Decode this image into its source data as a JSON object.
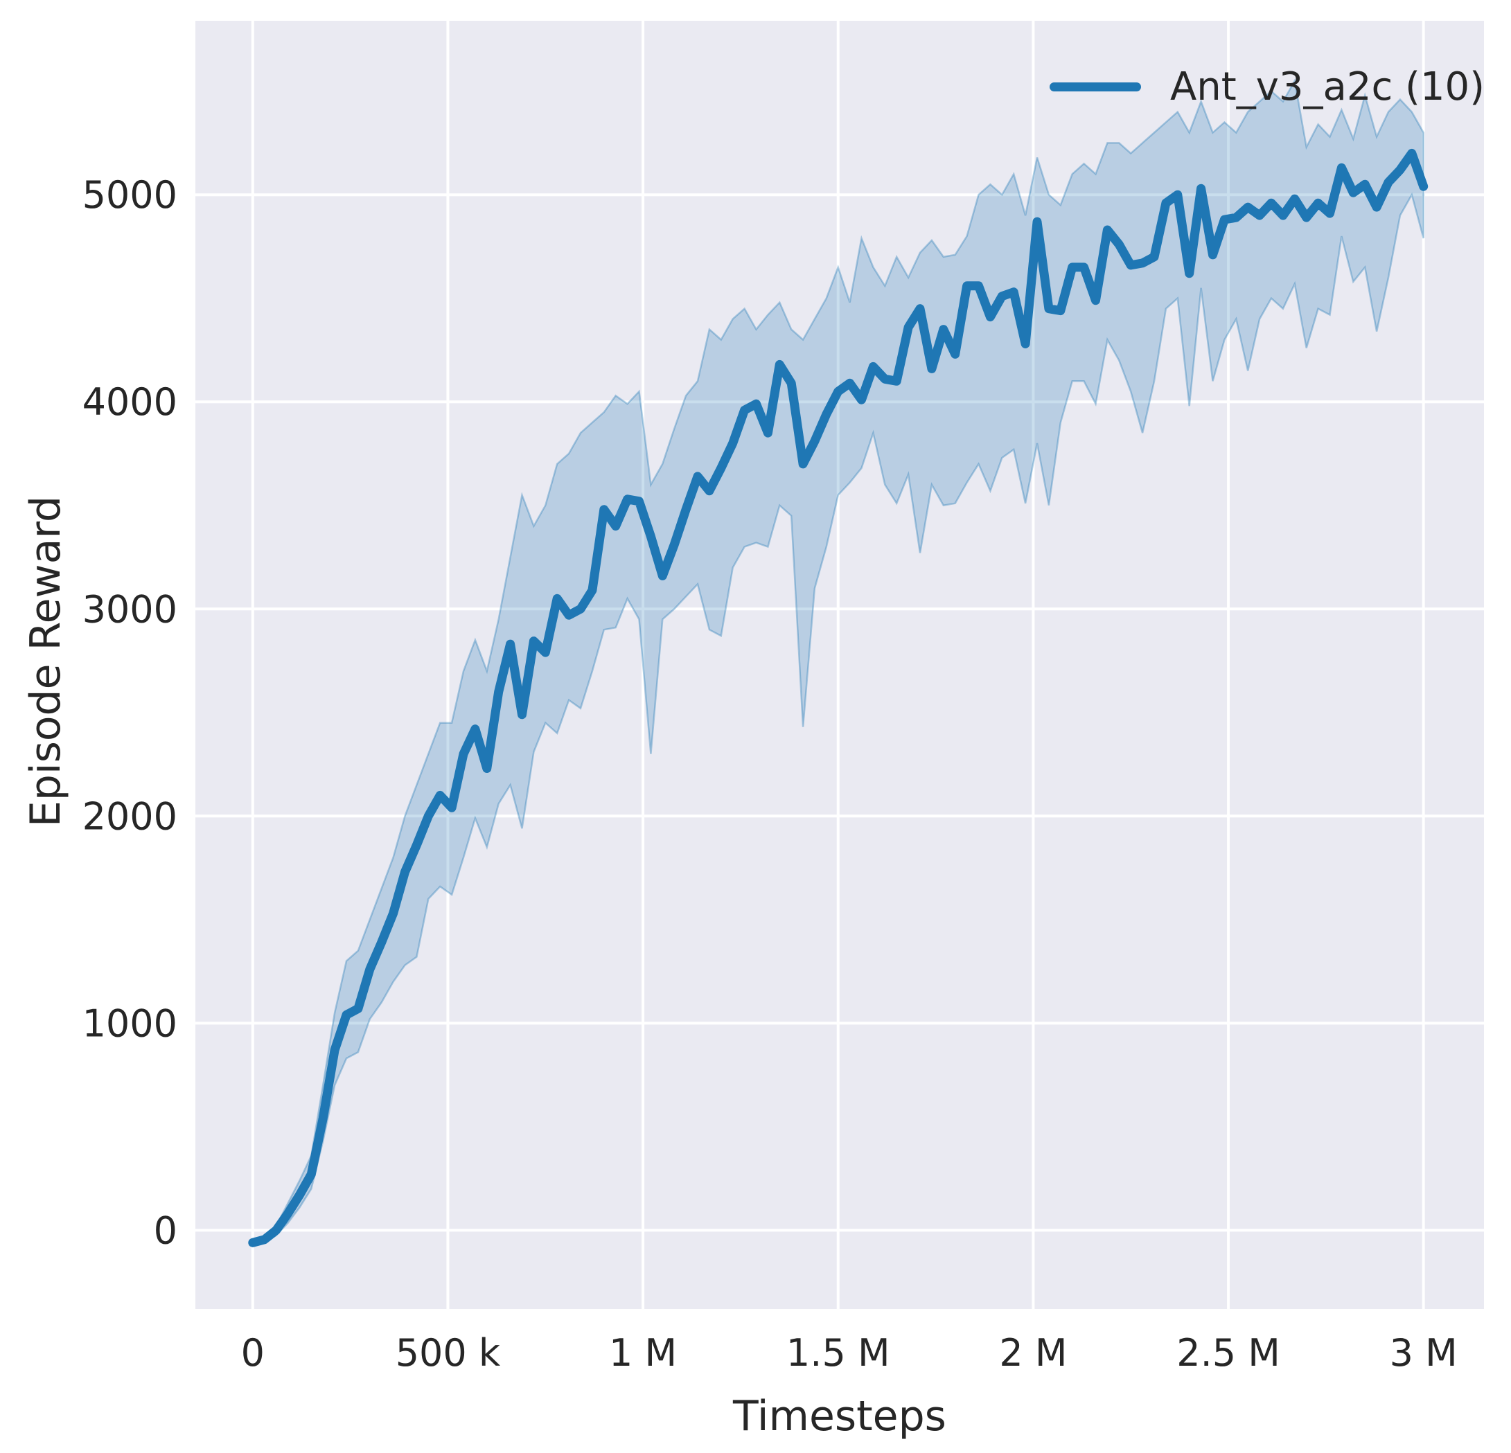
{
  "figure": {
    "background": "#ffffff",
    "axes_background": "#eaeaf2",
    "grid_color": "#ffffff",
    "text_color": "#262626",
    "accent_color": "#1f77b4"
  },
  "legend": {
    "label": "Ant_v3_a2c (10)"
  },
  "axes": {
    "xlabel": "Timesteps",
    "ylabel": "Episode Reward"
  },
  "chart_data": {
    "type": "line",
    "title": "",
    "xlabel": "Timesteps",
    "ylabel": "Episode Reward",
    "grid": true,
    "legend_position": "upper right",
    "xlim": [
      -147000,
      3155000
    ],
    "ylim": [
      -380,
      5840
    ],
    "x_ticks": [
      {
        "value": 0,
        "label": "0"
      },
      {
        "value": 500000,
        "label": "500 k"
      },
      {
        "value": 1000000,
        "label": "1 M"
      },
      {
        "value": 1500000,
        "label": "1.5 M"
      },
      {
        "value": 2000000,
        "label": "2 M"
      },
      {
        "value": 2500000,
        "label": "2.5 M"
      },
      {
        "value": 3000000,
        "label": "3 M"
      }
    ],
    "y_ticks": [
      {
        "value": 0,
        "label": "0"
      },
      {
        "value": 1000,
        "label": "1000"
      },
      {
        "value": 2000,
        "label": "2000"
      },
      {
        "value": 3000,
        "label": "3000"
      },
      {
        "value": 4000,
        "label": "4000"
      },
      {
        "value": 5000,
        "label": "5000"
      }
    ],
    "series": [
      {
        "name": "Ant_v3_a2c (10)",
        "color": "#1f77b4",
        "band_fill_alpha": 0.24,
        "x": [
          0,
          30000,
          60000,
          90000,
          120000,
          150000,
          180000,
          210000,
          240000,
          270000,
          300000,
          330000,
          360000,
          390000,
          420000,
          450000,
          480000,
          510000,
          540000,
          570000,
          600000,
          630000,
          660000,
          690000,
          720000,
          750000,
          780000,
          810000,
          840000,
          870000,
          900000,
          930000,
          960000,
          990000,
          1020000,
          1050000,
          1080000,
          1110000,
          1140000,
          1170000,
          1200000,
          1230000,
          1260000,
          1290000,
          1320000,
          1350000,
          1380000,
          1410000,
          1440000,
          1470000,
          1500000,
          1530000,
          1560000,
          1590000,
          1620000,
          1650000,
          1680000,
          1710000,
          1740000,
          1770000,
          1800000,
          1830000,
          1860000,
          1890000,
          1920000,
          1950000,
          1980000,
          2010000,
          2040000,
          2070000,
          2100000,
          2130000,
          2160000,
          2190000,
          2220000,
          2250000,
          2280000,
          2310000,
          2340000,
          2370000,
          2400000,
          2430000,
          2460000,
          2490000,
          2520000,
          2550000,
          2580000,
          2610000,
          2640000,
          2670000,
          2700000,
          2730000,
          2760000,
          2790000,
          2820000,
          2850000,
          2880000,
          2910000,
          2940000,
          2970000,
          3000000
        ],
        "mean": [
          -60,
          -45,
          0,
          80,
          170,
          270,
          540,
          870,
          1040,
          1070,
          1260,
          1390,
          1530,
          1730,
          1860,
          2000,
          2100,
          2040,
          2300,
          2420,
          2230,
          2600,
          2830,
          2490,
          2845,
          2790,
          3050,
          2970,
          3000,
          3090,
          3480,
          3400,
          3530,
          3520,
          3350,
          3160,
          3310,
          3480,
          3640,
          3570,
          3680,
          3800,
          3960,
          3990,
          3850,
          4180,
          4090,
          3700,
          3810,
          3940,
          4050,
          4090,
          4010,
          4170,
          4110,
          4100,
          4360,
          4450,
          4160,
          4350,
          4230,
          4560,
          4560,
          4410,
          4510,
          4530,
          4280,
          4870,
          4450,
          4440,
          4650,
          4650,
          4490,
          4830,
          4760,
          4660,
          4670,
          4700,
          4960,
          5000,
          4620,
          5030,
          4710,
          4880,
          4890,
          4940,
          4900,
          4960,
          4900,
          4980,
          4890,
          4960,
          4910,
          5130,
          5010,
          5050,
          4940,
          5060,
          5120,
          5200,
          5040
        ],
        "lower": [
          -75,
          -60,
          -25,
          35,
          110,
          200,
          430,
          700,
          830,
          860,
          1020,
          1100,
          1200,
          1280,
          1320,
          1600,
          1660,
          1620,
          1800,
          1990,
          1850,
          2060,
          2150,
          1940,
          2310,
          2450,
          2400,
          2560,
          2520,
          2700,
          2900,
          2910,
          3050,
          2950,
          2300,
          2950,
          3000,
          3060,
          3120,
          2900,
          2870,
          3200,
          3300,
          3320,
          3300,
          3500,
          3450,
          2430,
          3100,
          3300,
          3550,
          3610,
          3680,
          3850,
          3600,
          3510,
          3650,
          3270,
          3600,
          3500,
          3510,
          3610,
          3700,
          3570,
          3730,
          3770,
          3510,
          3800,
          3500,
          3900,
          4100,
          4100,
          3990,
          4300,
          4200,
          4050,
          3850,
          4100,
          4450,
          4500,
          3980,
          4550,
          4100,
          4300,
          4400,
          4150,
          4400,
          4500,
          4450,
          4570,
          4260,
          4450,
          4420,
          4800,
          4580,
          4650,
          4340,
          4600,
          4900,
          5000,
          4790
        ],
        "upper": [
          -45,
          -30,
          20,
          130,
          240,
          360,
          700,
          1050,
          1300,
          1350,
          1500,
          1650,
          1800,
          2000,
          2150,
          2300,
          2450,
          2450,
          2700,
          2850,
          2700,
          2950,
          3250,
          3550,
          3400,
          3500,
          3700,
          3750,
          3850,
          3900,
          3950,
          4030,
          3990,
          4050,
          3600,
          3700,
          3870,
          4030,
          4100,
          4350,
          4300,
          4400,
          4450,
          4350,
          4420,
          4480,
          4350,
          4300,
          4400,
          4500,
          4650,
          4480,
          4790,
          4650,
          4560,
          4700,
          4600,
          4720,
          4780,
          4700,
          4710,
          4800,
          5000,
          5050,
          5000,
          5100,
          4900,
          5180,
          5000,
          4950,
          5100,
          5150,
          5100,
          5250,
          5250,
          5200,
          5250,
          5300,
          5350,
          5400,
          5300,
          5450,
          5300,
          5350,
          5300,
          5400,
          5450,
          5500,
          5450,
          5550,
          5230,
          5340,
          5280,
          5410,
          5270,
          5480,
          5280,
          5400,
          5460,
          5400,
          5300
        ]
      }
    ]
  }
}
